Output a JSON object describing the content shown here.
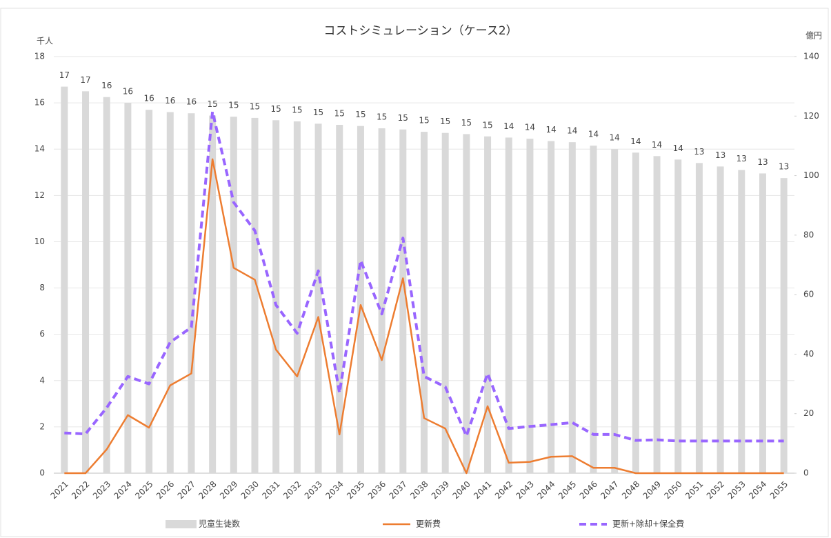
{
  "chart_data": {
    "type": "bar-line",
    "title": "コストシミュレーション（ケース2）",
    "y_label": "千人",
    "y2_label": "億円",
    "categories": [
      "2021",
      "2022",
      "2023",
      "2024",
      "2025",
      "2026",
      "2027",
      "2028",
      "2029",
      "2030",
      "2031",
      "2032",
      "2033",
      "2034",
      "2035",
      "2036",
      "2037",
      "2038",
      "2039",
      "2040",
      "2041",
      "2042",
      "2043",
      "2044",
      "2045",
      "2046",
      "2047",
      "2048",
      "2049",
      "2050",
      "2051",
      "2052",
      "2053",
      "2054",
      "2055"
    ],
    "series": [
      {
        "name": "児童生徒数",
        "type": "bar",
        "color": "#d9d9d9",
        "values": [
          16.7,
          16.5,
          16.25,
          16.0,
          15.7,
          15.6,
          15.55,
          15.45,
          15.4,
          15.35,
          15.25,
          15.2,
          15.1,
          15.05,
          15.0,
          14.9,
          14.85,
          14.75,
          14.7,
          14.65,
          14.55,
          14.5,
          14.45,
          14.35,
          14.3,
          14.15,
          14.0,
          13.85,
          13.7,
          13.55,
          13.4,
          13.25,
          13.1,
          12.95,
          12.75
        ],
        "value_labels": [
          "17",
          "17",
          "16",
          "16",
          "16",
          "16",
          "16",
          "15",
          "15",
          "15",
          "15",
          "15",
          "15",
          "15",
          "15",
          "15",
          "15",
          "15",
          "15",
          "15",
          "15",
          "14",
          "14",
          "14",
          "14",
          "14",
          "14",
          "14",
          "14",
          "14",
          "13",
          "13",
          "13",
          "13",
          "13"
        ]
      },
      {
        "name": "更新費",
        "type": "line",
        "axis": "y2",
        "color": "#ed7d31",
        "dash": false,
        "values": [
          0,
          0,
          8,
          19.5,
          15.3,
          29.5,
          33.5,
          105.5,
          69,
          65,
          41.5,
          32.5,
          52.5,
          13,
          56.5,
          38,
          65.5,
          18.5,
          15,
          0,
          22.5,
          3.5,
          3.8,
          5.5,
          5.7,
          1.8,
          1.8,
          0,
          0,
          0,
          0,
          0,
          0,
          0,
          0
        ]
      },
      {
        "name": "更新+除却+保全費",
        "type": "line",
        "axis": "y2",
        "color": "#9966ff",
        "dash": true,
        "values": [
          13.5,
          13.2,
          22,
          32.5,
          30,
          44,
          49,
          121.5,
          91,
          81.5,
          56.5,
          47,
          68,
          27,
          71.5,
          53.5,
          79,
          32.5,
          29,
          12.5,
          33.5,
          15,
          15.7,
          16.3,
          17,
          13,
          13,
          11,
          11.2,
          10.8,
          10.8,
          10.8,
          10.8,
          10.8,
          10.8
        ]
      }
    ],
    "ylim": [
      0,
      18
    ],
    "yticks": [
      0,
      2,
      4,
      6,
      8,
      10,
      12,
      14,
      16,
      18
    ],
    "y2lim": [
      0,
      140
    ],
    "y2ticks": [
      0,
      20,
      40,
      60,
      80,
      100,
      120,
      140
    ],
    "grid": true
  }
}
